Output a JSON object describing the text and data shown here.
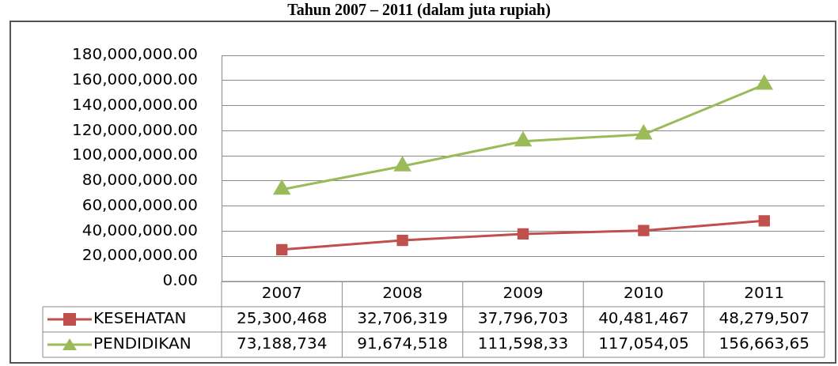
{
  "chart_data": {
    "type": "line",
    "title": "Tahun 2007 – 2011 (dalam juta rupiah)",
    "categories": [
      "2007",
      "2008",
      "2009",
      "2010",
      "2011"
    ],
    "series": [
      {
        "name": "KESEHATAN",
        "color": "#c0504d",
        "marker": "square",
        "values": [
          25300468,
          32706319,
          37796703,
          40481467,
          48279507
        ],
        "value_labels": [
          "25,300,468",
          "32,706,319",
          "37,796,703",
          "40,481,467",
          "48,279,507"
        ]
      },
      {
        "name": "PENDIDIKAN",
        "color": "#9bbb59",
        "marker": "triangle",
        "values": [
          73188734,
          91674518,
          111598330,
          117054050,
          156663650
        ],
        "value_labels": [
          "73,188,734",
          "91,674,518",
          "111,598,33",
          "117,054,05",
          "156,663,65"
        ]
      }
    ],
    "ylim": [
      0,
      180000000
    ],
    "yticks": [
      {
        "value": 0,
        "label": "0.00"
      },
      {
        "value": 20000000,
        "label": "20,000,000.00"
      },
      {
        "value": 40000000,
        "label": "40,000,000.00"
      },
      {
        "value": 60000000,
        "label": "60,000,000.00"
      },
      {
        "value": 80000000,
        "label": "80,000,000.00"
      },
      {
        "value": 100000000,
        "label": "100,000,000.00"
      },
      {
        "value": 120000000,
        "label": "120,000,000.00"
      },
      {
        "value": 140000000,
        "label": "140,000,000.00"
      },
      {
        "value": 160000000,
        "label": "160,000,000.00"
      },
      {
        "value": 180000000,
        "label": "180,000,000.00"
      }
    ],
    "grid": "y",
    "legend": "bottom"
  }
}
